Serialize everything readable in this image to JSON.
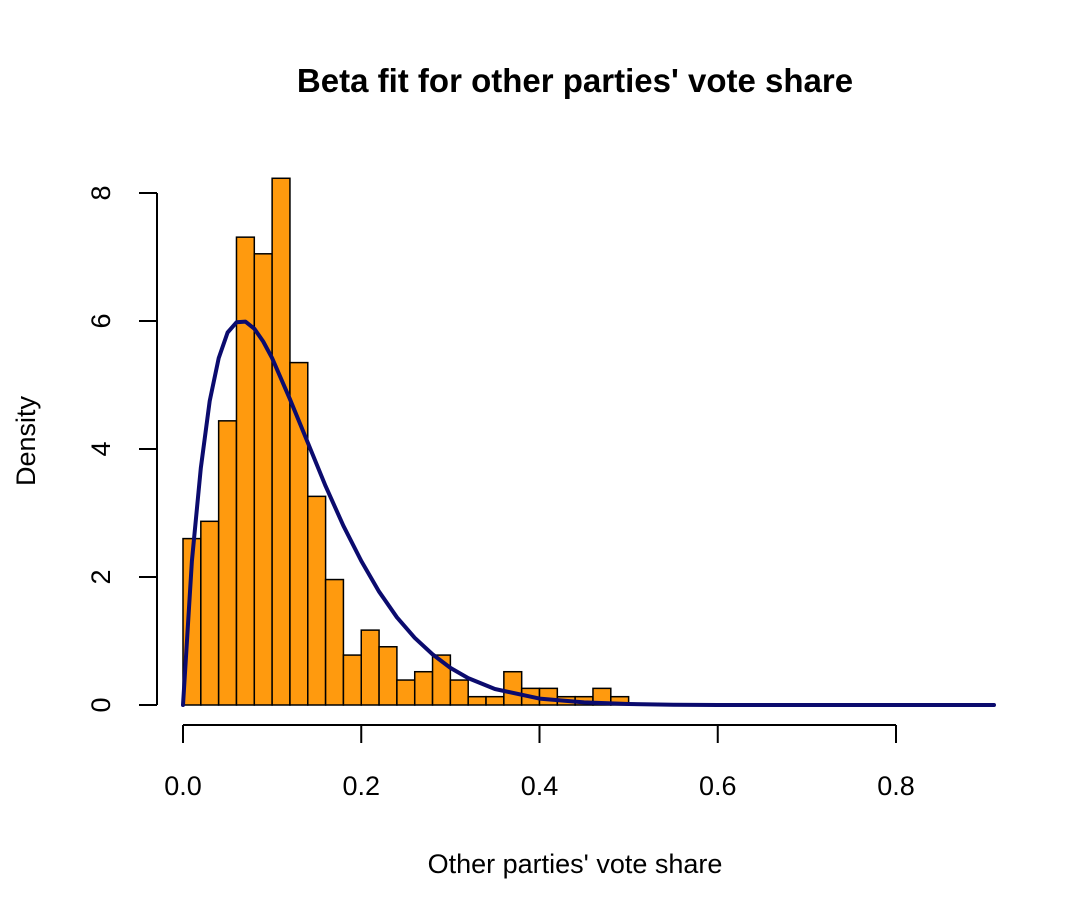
{
  "chart_data": {
    "type": "bar",
    "title": "Beta fit for other parties' vote share",
    "xlabel": "Other parties' vote share",
    "ylabel": "Density",
    "xlim": [
      0,
      0.9
    ],
    "ylim": [
      0,
      8
    ],
    "x_ticks": [
      "0.0",
      "0.2",
      "0.4",
      "0.6",
      "0.8"
    ],
    "x_tick_values": [
      0,
      0.2,
      0.4,
      0.6,
      0.8
    ],
    "y_ticks": [
      "0",
      "2",
      "4",
      "6",
      "8"
    ],
    "y_tick_values": [
      0,
      2,
      4,
      6,
      8
    ],
    "bin_width": 0.02,
    "bins_start": [
      0.0,
      0.02,
      0.04,
      0.06,
      0.08,
      0.1,
      0.12,
      0.14,
      0.16,
      0.18,
      0.2,
      0.22,
      0.24,
      0.26,
      0.28,
      0.3,
      0.32,
      0.34,
      0.36,
      0.38,
      0.4,
      0.42,
      0.44,
      0.46,
      0.48
    ],
    "values": [
      2.6,
      2.87,
      4.44,
      7.31,
      7.05,
      8.23,
      5.35,
      3.26,
      1.96,
      0.78,
      1.17,
      0.91,
      0.39,
      0.52,
      0.78,
      0.39,
      0.13,
      0.13,
      0.52,
      0.26,
      0.26,
      0.13,
      0.13,
      0.26,
      0.13
    ],
    "grid": false,
    "colors": {
      "bar_fill": "#ff9a0e",
      "bar_border": "#000000",
      "curve": "#0b0b6e"
    },
    "series": [
      {
        "type": "line",
        "x": [
          0.0,
          0.01,
          0.02,
          0.03,
          0.04,
          0.05,
          0.06,
          0.07,
          0.08,
          0.09,
          0.1,
          0.12,
          0.14,
          0.16,
          0.18,
          0.2,
          0.22,
          0.24,
          0.26,
          0.28,
          0.3,
          0.32,
          0.35,
          0.4,
          0.45,
          0.5,
          0.55,
          0.6,
          0.7,
          0.8,
          0.91
        ],
        "y": [
          0.0,
          2.25,
          3.7,
          4.75,
          5.42,
          5.82,
          5.98,
          5.99,
          5.88,
          5.68,
          5.42,
          4.78,
          4.1,
          3.42,
          2.8,
          2.25,
          1.77,
          1.37,
          1.05,
          0.79,
          0.58,
          0.42,
          0.25,
          0.1,
          0.04,
          0.015,
          0.005,
          0.0,
          0.0,
          0.0,
          0.0
        ]
      }
    ]
  }
}
